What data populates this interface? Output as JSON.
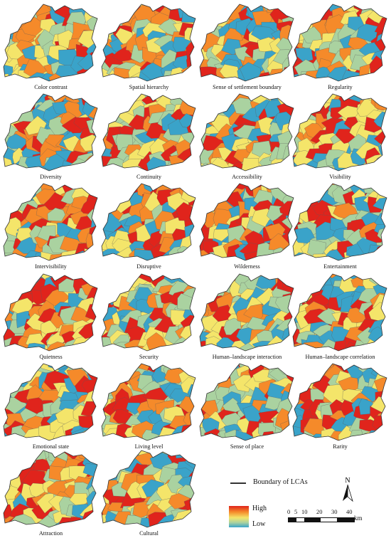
{
  "maps": [
    {
      "label": "Color contrast"
    },
    {
      "label": "Spatial hierarchy"
    },
    {
      "label": "Sense of settlement boundary"
    },
    {
      "label": "Regularity"
    },
    {
      "label": "Diversity"
    },
    {
      "label": "Continuity"
    },
    {
      "label": "Accessibility"
    },
    {
      "label": "Visibility"
    },
    {
      "label": "Intervisibility"
    },
    {
      "label": "Disruptive"
    },
    {
      "label": "Wilderness"
    },
    {
      "label": "Entertainment"
    },
    {
      "label": "Quietness"
    },
    {
      "label": "Security"
    },
    {
      "label": "Human–landscape interaction"
    },
    {
      "label": "Human–landscape correlation"
    },
    {
      "label": "Emotional state"
    },
    {
      "label": "Living level"
    },
    {
      "label": "Sense of place"
    },
    {
      "label": "Rarity"
    },
    {
      "label": "Attraction"
    },
    {
      "label": "Cultural"
    }
  ],
  "legend": {
    "boundary_label": "Boundary of LCAs",
    "high_label": "High",
    "low_label": "Low",
    "ramp_colors": [
      "#e0241c",
      "#f58a2a",
      "#f4e56a",
      "#aad2a0",
      "#3aa3c9"
    ]
  },
  "scale_bar": {
    "ticks": [
      "0",
      "5",
      "10",
      "20",
      "30",
      "40"
    ],
    "unit": "km"
  },
  "north_arrow": {
    "label": "N"
  }
}
